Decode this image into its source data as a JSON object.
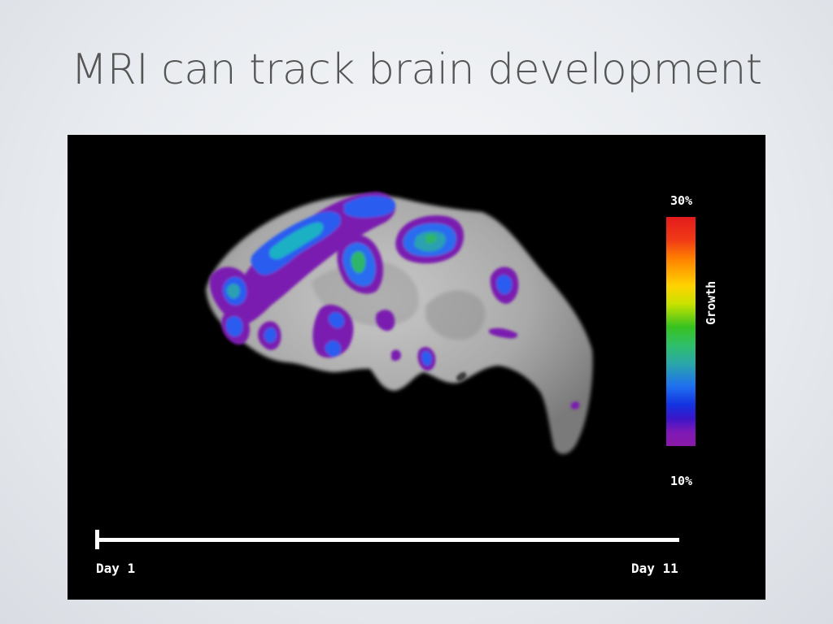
{
  "slide": {
    "title": "MRI can track brain development"
  },
  "colorbar": {
    "max_label": "30%",
    "min_label": "10%",
    "caption": "Growth",
    "colors": [
      "#e31a1c",
      "#ff7f00",
      "#ffd300",
      "#37c21f",
      "#2aa7a8",
      "#1f6ff0",
      "#8a1aa8"
    ]
  },
  "timeline": {
    "start_label": "Day 1",
    "end_label": "Day 11"
  }
}
